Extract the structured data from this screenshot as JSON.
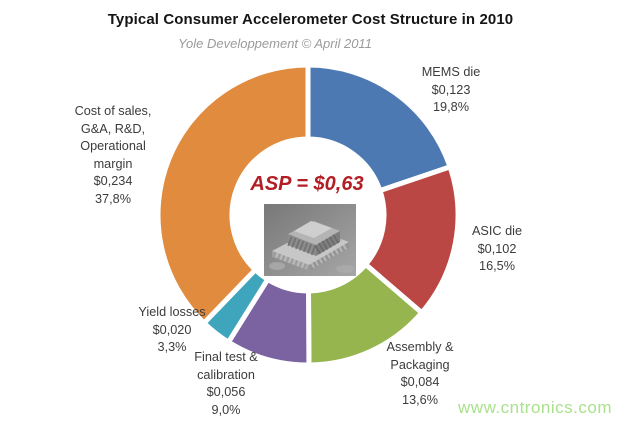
{
  "page": {
    "watermark": "www.cntronics.com",
    "watermark_color": "#a9e18c",
    "background": "#ffffff"
  },
  "chart_data": {
    "type": "pie",
    "style": "donut",
    "title": "Typical Consumer Accelerometer Cost Structure in 2010",
    "subtitle": "Yole Developpement © April 2011",
    "center_label": "ASP = $0,63",
    "center_label_color": "#b21e24",
    "center_image": "mems-accelerometer-chip-photo",
    "asp_total_usd": 0.63,
    "units": "USD per unit",
    "start_angle_deg": 0,
    "direction": "clockwise",
    "slices": [
      {
        "name": "MEMS die",
        "value_usd": 0.123,
        "pct": 19.8,
        "color": "#4c79b1",
        "label_lines": [
          "MEMS die",
          "$0,123",
          "19,8%"
        ]
      },
      {
        "name": "ASIC die",
        "value_usd": 0.102,
        "pct": 16.5,
        "color": "#bb4744",
        "label_lines": [
          "ASIC die",
          "$0,102",
          "16,5%"
        ]
      },
      {
        "name": "Assembly & Packaging",
        "value_usd": 0.084,
        "pct": 13.6,
        "color": "#96b54e",
        "label_lines": [
          "Assembly &",
          "Packaging",
          "$0,084",
          "13,6%"
        ]
      },
      {
        "name": "Final test & calibration",
        "value_usd": 0.056,
        "pct": 9.0,
        "color": "#7b63a1",
        "label_lines": [
          "Final test &",
          "calibration",
          "$0,056",
          "9,0%"
        ]
      },
      {
        "name": "Yield losses",
        "value_usd": 0.02,
        "pct": 3.3,
        "color": "#3fa5bc",
        "label_lines": [
          "Yield losses",
          "$0,020",
          "3,3%"
        ]
      },
      {
        "name": "Cost of sales, G&A, R&D, Operational margin",
        "value_usd": 0.234,
        "pct": 37.8,
        "color": "#e18b3e",
        "label_lines": [
          "Cost of sales,",
          "G&A, R&D,",
          "Operational",
          "margin",
          "$0,234",
          "37,8%"
        ]
      }
    ]
  }
}
